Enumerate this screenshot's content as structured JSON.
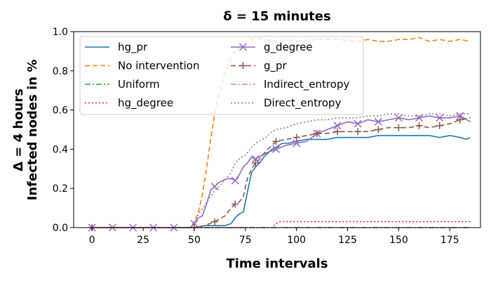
{
  "chart_data": {
    "type": "line",
    "title": "δ = 15 minutes",
    "xlabel": "Time intervals",
    "ylabel_line1": "Δ = 4 hours",
    "ylabel_line2": "Infected nodes in %",
    "xlim": [
      -9,
      190
    ],
    "ylim": [
      0,
      1.0
    ],
    "xticks": [
      0,
      25,
      50,
      75,
      100,
      125,
      150,
      175
    ],
    "yticks": [
      0.0,
      0.2,
      0.4,
      0.6,
      0.8,
      1.0
    ],
    "legend_position": "top-left",
    "grid": false,
    "series": [
      {
        "name": "hg_pr",
        "color": "#1f77b4",
        "dash": "",
        "marker": "",
        "x": [
          0,
          40,
          50,
          55,
          60,
          65,
          68,
          70,
          72,
          74,
          76,
          78,
          80,
          82,
          84,
          86,
          88,
          90,
          93,
          96,
          100,
          105,
          110,
          115,
          120,
          125,
          130,
          135,
          140,
          145,
          150,
          155,
          160,
          165,
          170,
          175,
          180,
          183,
          185
        ],
        "y": [
          0,
          0,
          0,
          0.01,
          0.01,
          0.01,
          0.02,
          0.05,
          0.07,
          0.08,
          0.18,
          0.28,
          0.31,
          0.33,
          0.36,
          0.38,
          0.4,
          0.41,
          0.43,
          0.43,
          0.44,
          0.45,
          0.45,
          0.45,
          0.46,
          0.46,
          0.46,
          0.46,
          0.47,
          0.47,
          0.47,
          0.47,
          0.47,
          0.47,
          0.46,
          0.47,
          0.46,
          0.45,
          0.46
        ]
      },
      {
        "name": "No intervention",
        "color": "#ff7f0e",
        "dash": "7,4",
        "marker": "",
        "x": [
          0,
          48,
          50,
          52,
          54,
          56,
          58,
          60,
          62,
          64,
          66,
          68,
          70,
          72,
          74,
          76,
          78,
          80,
          85,
          90,
          95,
          100,
          110,
          120,
          130,
          135,
          140,
          145,
          150,
          155,
          160,
          165,
          170,
          175,
          180,
          185
        ],
        "y": [
          0,
          0,
          0.02,
          0.08,
          0.17,
          0.3,
          0.45,
          0.58,
          0.68,
          0.75,
          0.82,
          0.87,
          0.9,
          0.92,
          0.94,
          0.95,
          0.96,
          0.97,
          0.96,
          0.95,
          0.96,
          0.95,
          0.96,
          0.96,
          0.95,
          0.96,
          0.95,
          0.95,
          0.96,
          0.96,
          0.97,
          0.95,
          0.96,
          0.95,
          0.96,
          0.95
        ]
      },
      {
        "name": "Uniform",
        "color": "#2ca02c",
        "dash": "8,3,2,3",
        "marker": "",
        "x": [
          0,
          185
        ],
        "y": [
          0,
          0
        ]
      },
      {
        "name": "hg_degree",
        "color": "#d62728",
        "dash": "2,3",
        "marker": "",
        "x": [
          0,
          88,
          90,
          92,
          95,
          100,
          110,
          120,
          130,
          140,
          150,
          160,
          170,
          180,
          185
        ],
        "y": [
          0,
          0,
          0.02,
          0.03,
          0.03,
          0.03,
          0.03,
          0.03,
          0.03,
          0.03,
          0.03,
          0.03,
          0.03,
          0.03,
          0.03
        ]
      },
      {
        "name": "g_degree",
        "color": "#9467bd",
        "dash": "",
        "marker": "x",
        "x": [
          0,
          10,
          20,
          30,
          40,
          48,
          50,
          52,
          54,
          56,
          58,
          60,
          62,
          64,
          66,
          68,
          70,
          72,
          74,
          76,
          78,
          80,
          85,
          90,
          95,
          100,
          105,
          110,
          115,
          120,
          125,
          130,
          135,
          140,
          145,
          150,
          155,
          160,
          165,
          170,
          175,
          180,
          185
        ],
        "y": [
          0,
          0,
          0,
          0,
          0,
          0,
          0.02,
          0.05,
          0.06,
          0.12,
          0.19,
          0.21,
          0.23,
          0.24,
          0.25,
          0.25,
          0.24,
          0.27,
          0.31,
          0.33,
          0.36,
          0.35,
          0.38,
          0.4,
          0.42,
          0.43,
          0.44,
          0.48,
          0.5,
          0.52,
          0.54,
          0.53,
          0.55,
          0.54,
          0.55,
          0.56,
          0.55,
          0.56,
          0.57,
          0.56,
          0.56,
          0.57,
          0.54
        ]
      },
      {
        "name": "g_pr",
        "color": "#8c564b",
        "dash": "7,4",
        "marker": "+",
        "x": [
          0,
          50,
          55,
          60,
          65,
          68,
          70,
          72,
          74,
          76,
          78,
          80,
          82,
          85,
          88,
          90,
          95,
          100,
          105,
          110,
          115,
          120,
          125,
          130,
          135,
          140,
          145,
          150,
          155,
          160,
          165,
          170,
          175,
          180,
          185
        ],
        "y": [
          0,
          0,
          0.01,
          0.03,
          0.06,
          0.1,
          0.12,
          0.13,
          0.16,
          0.25,
          0.3,
          0.33,
          0.35,
          0.39,
          0.42,
          0.44,
          0.45,
          0.46,
          0.47,
          0.48,
          0.48,
          0.49,
          0.49,
          0.49,
          0.49,
          0.5,
          0.51,
          0.51,
          0.51,
          0.52,
          0.51,
          0.52,
          0.53,
          0.55,
          0.56
        ]
      },
      {
        "name": "Indirect_entropy",
        "color": "#e377c2",
        "dash": "8,3,2,3",
        "marker": "",
        "x": [
          0,
          185
        ],
        "y": [
          0,
          0
        ]
      },
      {
        "name": "Direct_entropy",
        "color": "#7f7f7f",
        "dash": "2,3",
        "marker": "",
        "x": [
          0,
          48,
          50,
          52,
          55,
          58,
          60,
          62,
          65,
          68,
          70,
          72,
          75,
          78,
          80,
          85,
          88,
          90,
          95,
          100,
          105,
          110,
          115,
          120,
          125,
          130,
          135,
          140,
          145,
          150,
          155,
          160,
          165,
          170,
          175,
          180,
          185
        ],
        "y": [
          0,
          0,
          0.03,
          0.07,
          0.11,
          0.16,
          0.19,
          0.21,
          0.24,
          0.28,
          0.33,
          0.35,
          0.37,
          0.41,
          0.43,
          0.46,
          0.49,
          0.5,
          0.51,
          0.53,
          0.54,
          0.55,
          0.55,
          0.56,
          0.56,
          0.56,
          0.57,
          0.57,
          0.58,
          0.58,
          0.57,
          0.57,
          0.58,
          0.58,
          0.57,
          0.58,
          0.58
        ]
      }
    ]
  }
}
